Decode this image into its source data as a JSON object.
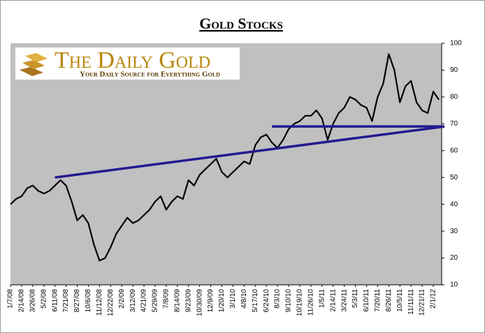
{
  "chart_data": {
    "type": "line",
    "title": "Gold Stocks",
    "logo_title": "The Daily Gold",
    "logo_subtitle": "Your Daily Source for Everything Gold",
    "categories": [
      "1/7/08",
      null,
      "2/14/08",
      null,
      "3/26/08",
      null,
      "5/2/08",
      null,
      "6/11/08",
      null,
      "7/21/08",
      null,
      "8/27/08",
      null,
      "10/6/08",
      null,
      "11/12/08",
      null,
      "12/22/08",
      null,
      "2/2/09",
      null,
      "3/12/09",
      null,
      "4/21/09",
      null,
      "5/29/09",
      null,
      "7/8/09",
      null,
      "8/14/09",
      null,
      "9/23/09",
      null,
      "10/30/09",
      null,
      "12/9/09",
      null,
      "1/20/10",
      null,
      "3/1/10",
      null,
      "4/8/10",
      null,
      "5/17/10",
      null,
      "6/24/10",
      null,
      "8/3/10",
      null,
      "9/10/10",
      null,
      "10/19/10",
      null,
      "11/26/10",
      null,
      "1/5/11",
      null,
      "2/14/11",
      null,
      "3/24/11",
      null,
      "5/3/11",
      null,
      "6/10/11",
      null,
      "7/20/11",
      null,
      "8/26/11",
      null,
      "10/5/11",
      null,
      "11/11/11",
      null,
      "12/21/11",
      null,
      "2/1/12",
      null
    ],
    "values": [
      40,
      42,
      43,
      46,
      47,
      45,
      44,
      45,
      47,
      49,
      47,
      41,
      34,
      36,
      33,
      25,
      19,
      20,
      24,
      29,
      32,
      35,
      33,
      34,
      36,
      38,
      41,
      43,
      38,
      41,
      43,
      42,
      49,
      47,
      51,
      53,
      55,
      57,
      52,
      50,
      52,
      54,
      56,
      55,
      62,
      65,
      66,
      63,
      61,
      64,
      68,
      70,
      71,
      73,
      73,
      75,
      72,
      64,
      70,
      74,
      76,
      80,
      79,
      77,
      76,
      71,
      80,
      85,
      96,
      90,
      78,
      84,
      86,
      78,
      75,
      74,
      82,
      79
    ],
    "color": "#000000",
    "trendlines": [
      {
        "color": "#231a8f",
        "values": [
          50,
          69
        ]
      },
      {
        "color": "#231a8f",
        "values": [
          69,
          69
        ]
      }
    ],
    "ylim": [
      10,
      100
    ],
    "yticks": [
      10,
      20,
      30,
      40,
      50,
      60,
      70,
      80,
      90,
      100
    ],
    "plot_background": "#c0c0c0"
  }
}
